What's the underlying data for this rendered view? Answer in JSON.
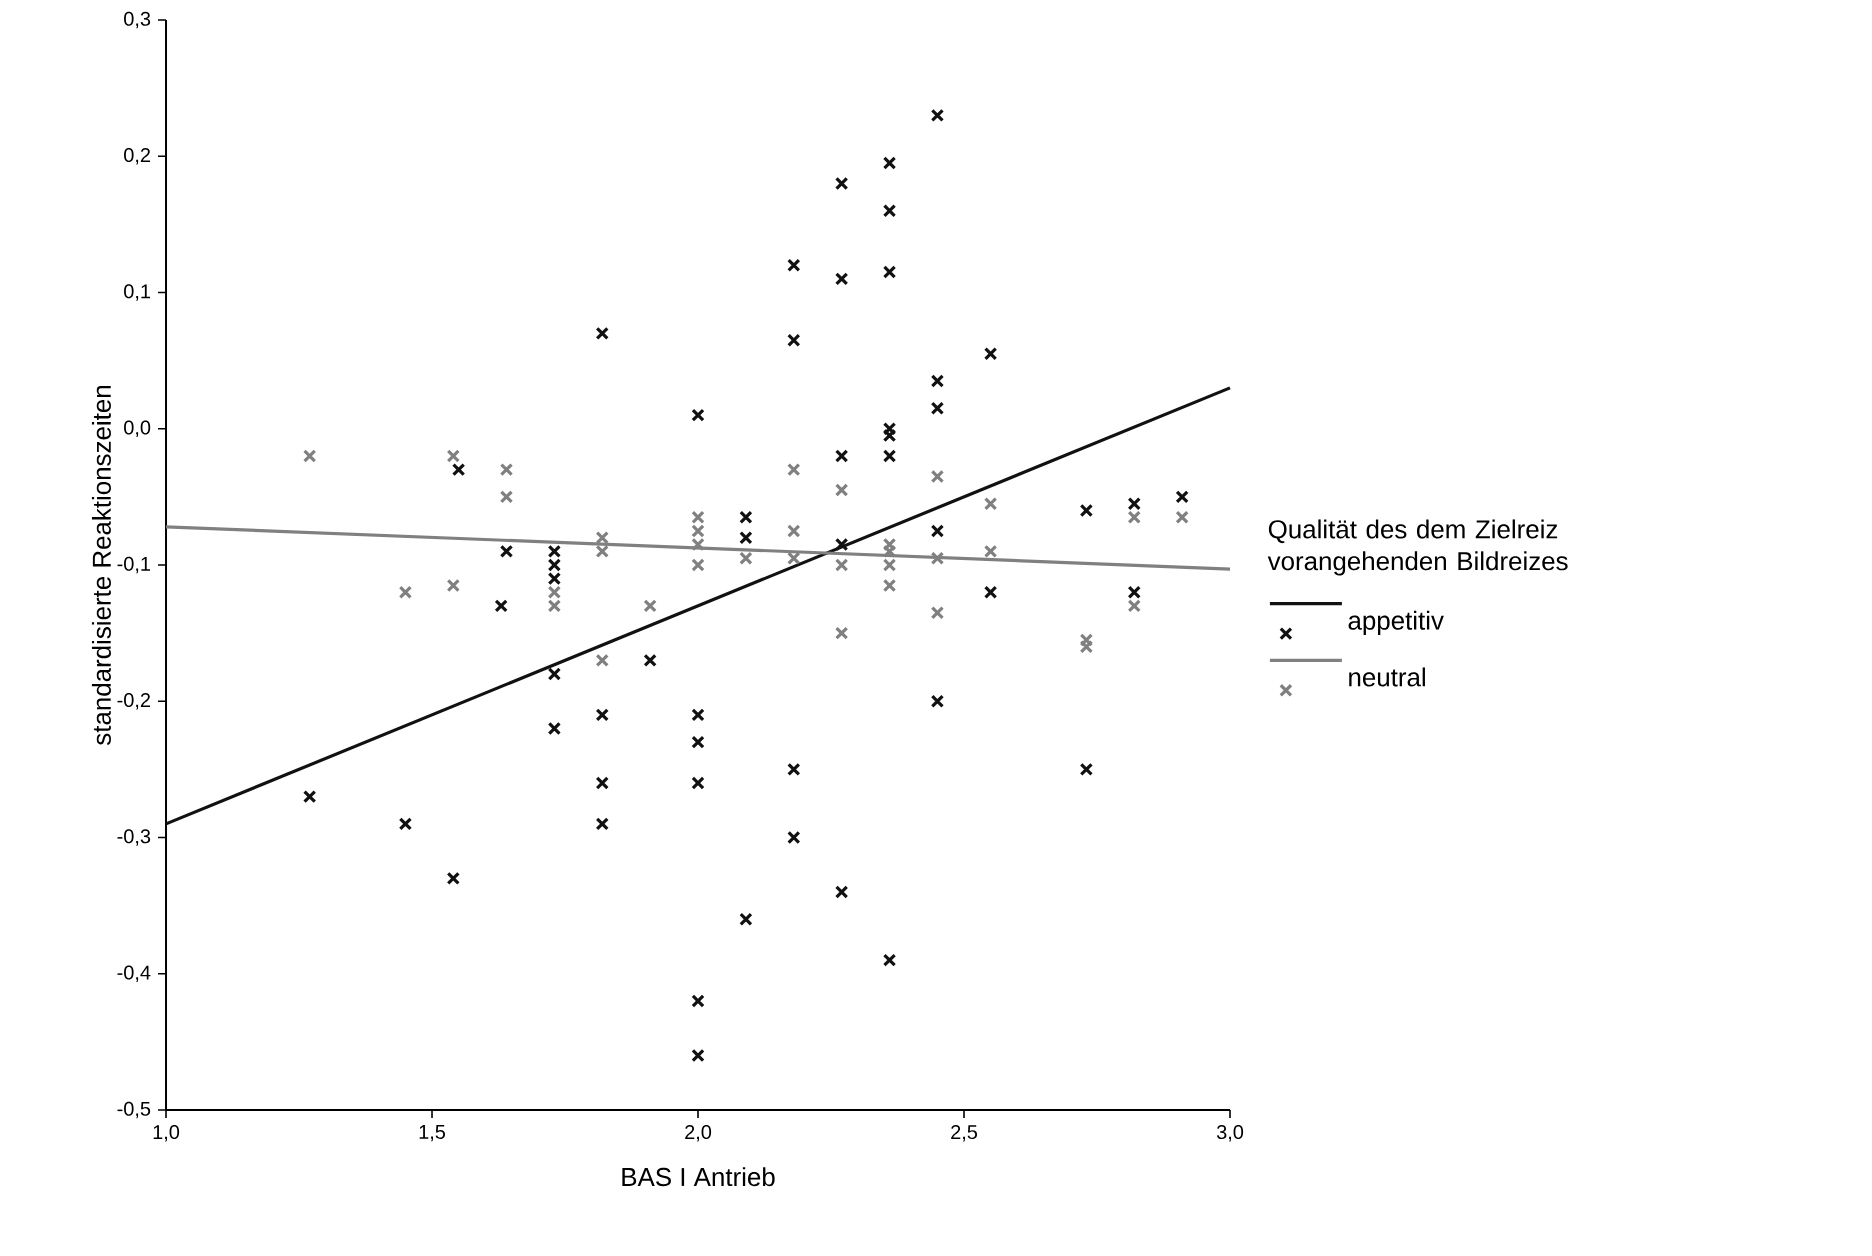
{
  "chart_data": {
    "type": "scatter",
    "xlabel": "BAS I Antrieb",
    "ylabel": "standardisierte Reaktionszeiten",
    "legend_title": "Qualität des dem Zielreiz vorangehenden Bildreizes",
    "legend": "right",
    "marker": "cross",
    "xlim": [
      1.0,
      3.0
    ],
    "ylim": [
      -0.5,
      0.3
    ],
    "xticks": [
      {
        "value": 1.0,
        "label": "1,0"
      },
      {
        "value": 1.5,
        "label": "1,5"
      },
      {
        "value": 2.0,
        "label": "2,0"
      },
      {
        "value": 2.5,
        "label": "2,5"
      },
      {
        "value": 3.0,
        "label": "3,0"
      }
    ],
    "yticks": [
      {
        "value": -0.5,
        "label": "-0,5"
      },
      {
        "value": -0.4,
        "label": "-0,4"
      },
      {
        "value": -0.3,
        "label": "-0,3"
      },
      {
        "value": -0.2,
        "label": "-0,2"
      },
      {
        "value": -0.1,
        "label": "-0,1"
      },
      {
        "value": 0.0,
        "label": "0,0"
      },
      {
        "value": 0.1,
        "label": "0,1"
      },
      {
        "value": 0.2,
        "label": "0,2"
      },
      {
        "value": 0.3,
        "label": "0,3"
      }
    ],
    "series": [
      {
        "name": "appetitiv",
        "color": "#111111",
        "x": [
          1.27,
          1.45,
          1.54,
          1.55,
          1.64,
          1.63,
          1.73,
          1.73,
          1.73,
          1.73,
          1.73,
          1.82,
          1.82,
          1.82,
          1.82,
          1.91,
          2.0,
          2.0,
          2.0,
          2.0,
          2.0,
          2.0,
          2.09,
          2.09,
          2.09,
          2.18,
          2.18,
          2.18,
          2.18,
          2.27,
          2.27,
          2.27,
          2.27,
          2.27,
          2.36,
          2.36,
          2.36,
          2.36,
          2.36,
          2.36,
          2.36,
          2.45,
          2.45,
          2.45,
          2.45,
          2.45,
          2.55,
          2.55,
          2.73,
          2.73,
          2.82,
          2.82,
          2.91
        ],
        "values": [
          -0.27,
          -0.29,
          -0.33,
          -0.03,
          -0.09,
          -0.13,
          -0.09,
          -0.1,
          -0.11,
          -0.18,
          -0.22,
          0.07,
          -0.21,
          -0.26,
          -0.29,
          -0.17,
          0.01,
          -0.21,
          -0.23,
          -0.26,
          -0.42,
          -0.46,
          -0.065,
          -0.08,
          -0.36,
          0.12,
          0.065,
          -0.25,
          -0.3,
          0.18,
          0.11,
          -0.02,
          -0.085,
          -0.34,
          0.195,
          0.16,
          0.115,
          0.0,
          -0.005,
          -0.02,
          -0.39,
          0.23,
          0.035,
          0.015,
          -0.075,
          -0.2,
          0.055,
          -0.12,
          -0.06,
          -0.25,
          -0.055,
          -0.12,
          -0.05
        ]
      },
      {
        "name": "neutral",
        "color": "#808080",
        "x": [
          1.27,
          1.45,
          1.54,
          1.54,
          1.64,
          1.64,
          1.73,
          1.73,
          1.82,
          1.82,
          1.82,
          1.91,
          2.0,
          2.0,
          2.0,
          2.0,
          2.09,
          2.18,
          2.18,
          2.18,
          2.27,
          2.27,
          2.27,
          2.36,
          2.36,
          2.36,
          2.36,
          2.45,
          2.45,
          2.45,
          2.55,
          2.55,
          2.73,
          2.73,
          2.82,
          2.82,
          2.91
        ],
        "values": [
          -0.02,
          -0.12,
          -0.02,
          -0.115,
          -0.03,
          -0.05,
          -0.12,
          -0.13,
          -0.08,
          -0.09,
          -0.17,
          -0.13,
          -0.065,
          -0.075,
          -0.085,
          -0.1,
          -0.095,
          -0.03,
          -0.075,
          -0.095,
          -0.045,
          -0.1,
          -0.15,
          -0.085,
          -0.09,
          -0.1,
          -0.115,
          -0.035,
          -0.095,
          -0.135,
          -0.055,
          -0.09,
          -0.155,
          -0.16,
          -0.065,
          -0.13,
          -0.065
        ]
      },
      {
        "type": "line",
        "marker": "none",
        "color": "#111111",
        "x": [
          1.0,
          3.0
        ],
        "values": [
          -0.29,
          0.03
        ]
      },
      {
        "type": "line",
        "marker": "none",
        "color": "#808080",
        "x": [
          1.0,
          3.0
        ],
        "values": [
          -0.072,
          -0.103
        ]
      }
    ]
  }
}
